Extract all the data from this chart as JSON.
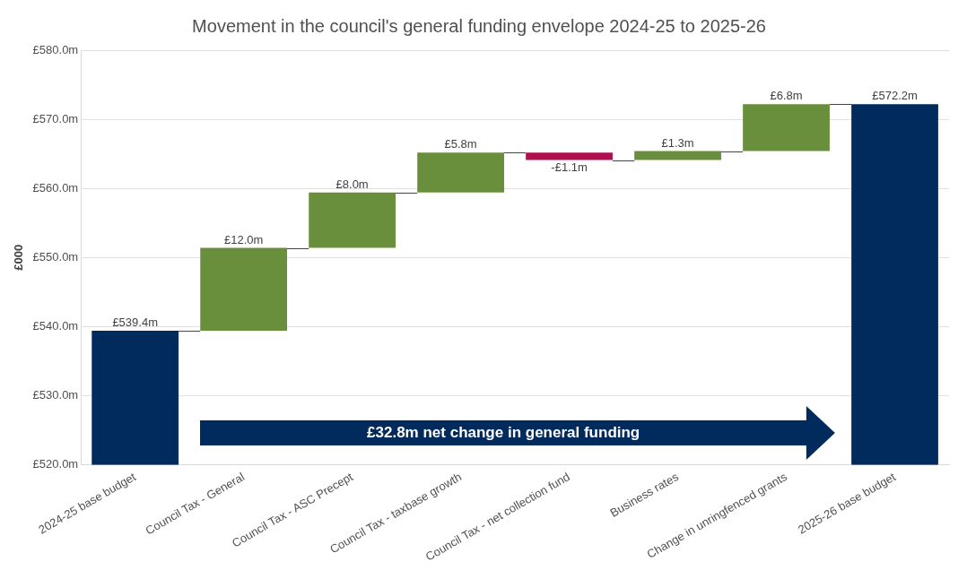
{
  "chart_data": {
    "type": "bar",
    "title": "Movement in the council's general funding envelope 2024-25 to 2025-26",
    "ylabel": "£000",
    "categories": [
      "2024-25 base budget",
      "Council Tax - General",
      "Council Tax - ASC Precept",
      "Council Tax - taxbase growth",
      "Council Tax - net collection fund",
      "Business rates",
      "Change in unringfenced grants",
      "2025-26 base budget"
    ],
    "values": [
      19.4,
      12.0,
      8.0,
      5.8,
      -1.1,
      1.3,
      6.8,
      52.2
    ],
    "base": [
      520,
      539.4,
      551.4,
      559.4,
      565.2,
      564.1,
      565.4,
      520
    ],
    "colors": [
      "#002b5c",
      "#6a8f3c",
      "#6a8f3c",
      "#6a8f3c",
      "#b0104f",
      "#6a8f3c",
      "#6a8f3c",
      "#002b5c"
    ],
    "value_labels": [
      "£539.4m",
      "£12.0m",
      "£8.0m",
      "£5.8m",
      "-£1.1m",
      "£1.3m",
      "£6.8m",
      "£572.2m"
    ],
    "ylim": [
      520,
      580
    ],
    "yticks": [
      {
        "value": 520,
        "label": "£520.0m"
      },
      {
        "value": 530,
        "label": "£530.0m"
      },
      {
        "value": 540,
        "label": "£540.0m"
      },
      {
        "value": 550,
        "label": "£550.0m"
      },
      {
        "value": 560,
        "label": "£560.0m"
      },
      {
        "value": 570,
        "label": "£570.0m"
      },
      {
        "value": 580,
        "label": "£580.0m"
      }
    ],
    "grid": "y",
    "legend": false,
    "annotations": [
      "£32.8m net change in general funding"
    ]
  }
}
